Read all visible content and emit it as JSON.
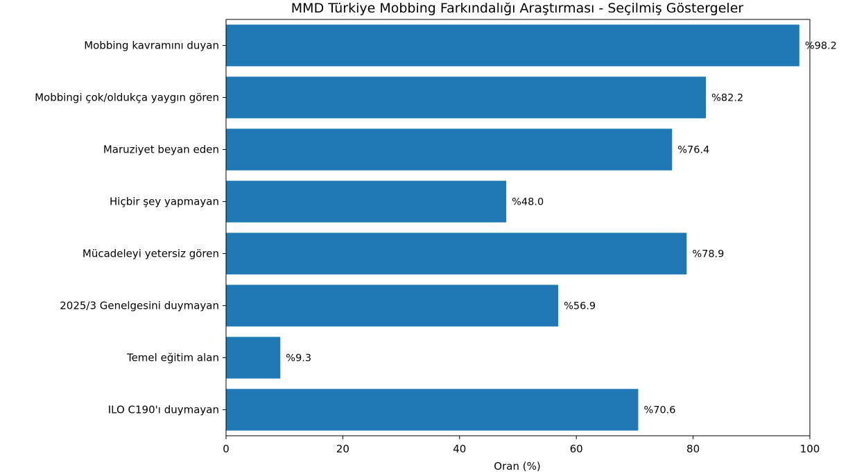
{
  "chart_data": {
    "type": "bar",
    "orientation": "horizontal",
    "title": "MMD Türkiye Mobbing Farkındalığı Araştırması - Seçilmiş Göstergeler",
    "xlabel": "Oran (%)",
    "ylabel": "",
    "xlim": [
      0,
      100
    ],
    "xticks": [
      "0",
      "20",
      "40",
      "60",
      "80",
      "100"
    ],
    "grid": false,
    "bar_color": "#1f77b4",
    "value_prefix": "%",
    "categories": [
      "Mobbing kavramını duyan",
      "Mobbingi çok/oldukça yaygın gören",
      "Maruziyet beyan eden",
      "Hiçbir şey yapmayan",
      "Mücadeleyi yetersiz gören",
      "2025/3 Genelgesini duymayan",
      "Temel eğitim alan",
      "ILO C190'ı duymayan"
    ],
    "values": [
      98.2,
      82.2,
      76.4,
      48.0,
      78.9,
      56.9,
      9.3,
      70.6
    ],
    "value_labels": [
      "%98.2",
      "%82.2",
      "%76.4",
      "%48.0",
      "%78.9",
      "%56.9",
      "%9.3",
      "%70.6"
    ]
  }
}
